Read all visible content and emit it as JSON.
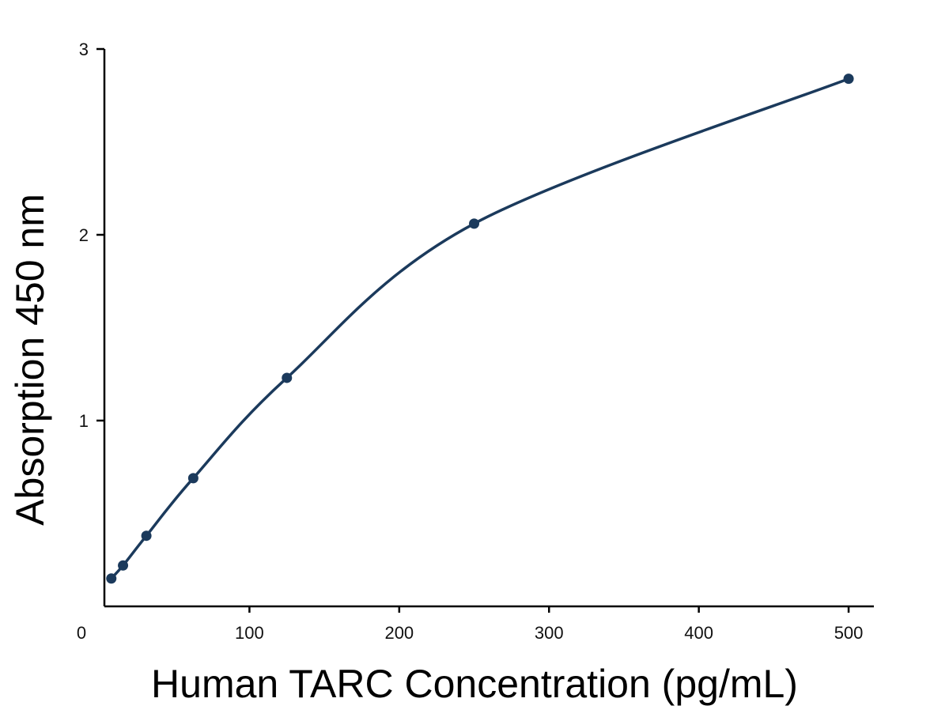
{
  "chart_data": {
    "type": "scatter",
    "title": "",
    "xlabel": "Human TARC Concentration (pg/mL)",
    "ylabel": "Absorption 450 nm",
    "xlim": [
      0,
      510
    ],
    "ylim": [
      0.0,
      3.0
    ],
    "x_ticks": [
      0,
      100,
      200,
      300,
      400,
      500
    ],
    "y_ticks": [
      1,
      2,
      3
    ],
    "grid": false,
    "legend": "none",
    "point_color": "#1b3a5c",
    "line_color": "#1b3a5c",
    "series": [
      {
        "points": [
          {
            "x": 7.8,
            "y": 0.15
          },
          {
            "x": 15.6,
            "y": 0.22
          },
          {
            "x": 31.2,
            "y": 0.38
          },
          {
            "x": 62.5,
            "y": 0.69
          },
          {
            "x": 125,
            "y": 1.23
          },
          {
            "x": 250,
            "y": 2.06
          },
          {
            "x": 500,
            "y": 2.84
          }
        ]
      }
    ]
  }
}
